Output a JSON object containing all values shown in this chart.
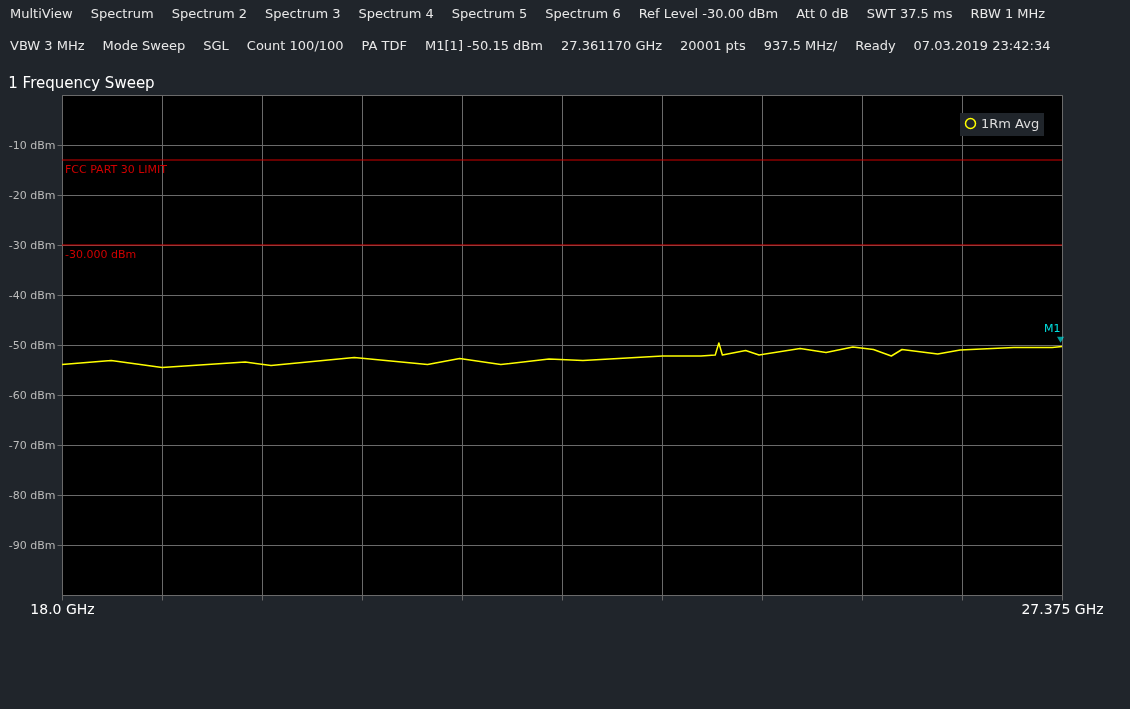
{
  "chart_data": {
    "type": "line",
    "title": "1 Frequency Sweep",
    "annotations": [
      "MultiView",
      "Spectrum",
      "Spectrum 2",
      "Spectrum 3",
      "Spectrum 4",
      "Spectrum 5",
      "Spectrum 6",
      "Ref Level -30.00 dBm",
      "Att 0 dB",
      "SWT 37.5 ms",
      "RBW 1 MHz",
      "VBW 3 MHz",
      "Mode Sweep",
      "SGL",
      "Count 100/100",
      "PA TDF",
      "M1[1] -50.15 dBm",
      "27.361170 GHz",
      "20001 pts",
      "937.5 MHz/",
      "Ready",
      "07.03.2019 23:42:34",
      {
        "text": "M1",
        "x": 27.36117,
        "y": -50.15
      }
    ],
    "series": [
      {
        "name": "1Rm Avg",
        "color": "#ffff00",
        "x": [
          18.0,
          18.461,
          18.938,
          19.718,
          19.96,
          20.74,
          21.427,
          21.728,
          22.114,
          22.566,
          22.884,
          23.63,
          23.99,
          24.124,
          24.158,
          24.191,
          24.409,
          24.535,
          24.92,
          25.163,
          25.414,
          25.607,
          25.775,
          25.875,
          26.21,
          26.42,
          26.923,
          27.283,
          27.375
        ],
        "values": [
          -53.9,
          -53.1,
          -54.5,
          -53.4,
          -54.1,
          -52.5,
          -53.9,
          -52.7,
          -53.9,
          -52.8,
          -53.1,
          -52.2,
          -52.2,
          -52.0,
          -49.6,
          -52.0,
          -51.1,
          -52.0,
          -50.7,
          -51.5,
          -50.4,
          -50.9,
          -52.2,
          -50.9,
          -51.8,
          -51.0,
          -50.5,
          -50.5,
          -50.3
        ]
      }
    ],
    "xlim": [
      18.0,
      27.375
    ],
    "xticks": [
      {
        "value": 18.0,
        "label": "18.0 GHz"
      },
      {
        "value": 18.9375,
        "label": null
      },
      {
        "value": 19.875,
        "label": null
      },
      {
        "value": 20.8125,
        "label": null
      },
      {
        "value": 21.75,
        "label": null
      },
      {
        "value": 22.6875,
        "label": null
      },
      {
        "value": 23.625,
        "label": null
      },
      {
        "value": 24.5625,
        "label": null
      },
      {
        "value": 25.5,
        "label": null
      },
      {
        "value": 26.4375,
        "label": null
      },
      {
        "value": 27.375,
        "label": "27.375 GHz"
      }
    ],
    "ylim": [
      -100,
      0
    ],
    "yticks": [
      {
        "value": -10,
        "label": "-10 dBm"
      },
      {
        "value": -20,
        "label": "-20 dBm"
      },
      {
        "value": -30,
        "label": "-30 dBm"
      },
      {
        "value": -40,
        "label": "-40 dBm"
      },
      {
        "value": -50,
        "label": "-50 dBm"
      },
      {
        "value": -60,
        "label": "-60 dBm"
      },
      {
        "value": -70,
        "label": "-70 dBm"
      },
      {
        "value": -80,
        "label": "-80 dBm"
      },
      {
        "value": -90,
        "label": "-90 dBm"
      }
    ],
    "ref_lines": [
      {
        "axis": "y",
        "value": -13,
        "label": "FCC PART 30 LIMIT",
        "color": "#d00000"
      },
      {
        "axis": "y",
        "value": -30,
        "label": "-30.000 dBm",
        "color": "#d00000"
      }
    ],
    "grid": true,
    "legend": "top right"
  }
}
